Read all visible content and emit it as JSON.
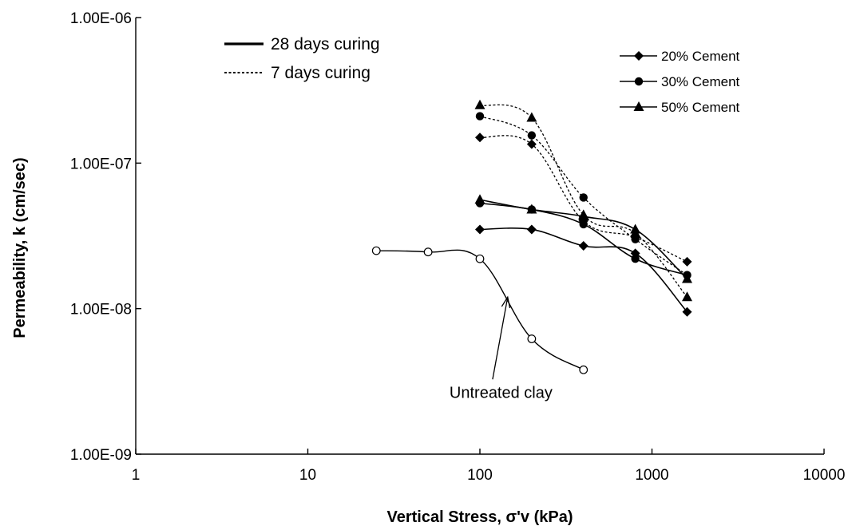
{
  "chart_data": {
    "type": "line",
    "title": "",
    "xlabel": "Vertical Stress, σ'v (kPa)",
    "ylabel": "Permeability, k (cm/sec)",
    "x_scale": "log",
    "y_scale": "log",
    "xlim": [
      1,
      10000
    ],
    "ylim": [
      1e-09,
      1e-06
    ],
    "x_ticks": [
      {
        "value": 1,
        "label": "1"
      },
      {
        "value": 10,
        "label": "10"
      },
      {
        "value": 100,
        "label": "100"
      },
      {
        "value": 1000,
        "label": "1000"
      },
      {
        "value": 10000,
        "label": "10000"
      }
    ],
    "y_ticks": [
      {
        "value": 1e-09,
        "label": "1.00E-09"
      },
      {
        "value": 1e-08,
        "label": "1.00E-08"
      },
      {
        "value": 1e-07,
        "label": "1.00E-07"
      },
      {
        "value": 1e-06,
        "label": "1.00E-06"
      }
    ],
    "grid": false,
    "legend_curing": [
      {
        "label": "28 days curing",
        "line": "solid"
      },
      {
        "label": "7 days curing",
        "line": "dotted"
      }
    ],
    "legend_cement": [
      {
        "label": "20% Cement",
        "marker": "diamond"
      },
      {
        "label": "30% Cement",
        "marker": "circle"
      },
      {
        "label": "50% Cement",
        "marker": "triangle"
      }
    ],
    "annotation": {
      "text": "Untreated clay",
      "x": 110,
      "y": 3.8e-09,
      "arrow_to_x": 145,
      "arrow_to_y": 1.2e-08
    },
    "series": [
      {
        "cement": "20% Cement",
        "curing": "28 days curing",
        "marker": "diamond",
        "line": "solid",
        "points": [
          [
            100,
            3.5e-08
          ],
          [
            200,
            3.5e-08
          ],
          [
            400,
            2.7e-08
          ],
          [
            800,
            2.4e-08
          ],
          [
            1600,
            9.5e-09
          ]
        ]
      },
      {
        "cement": "30% Cement",
        "curing": "28 days curing",
        "marker": "circle",
        "line": "solid",
        "points": [
          [
            100,
            5.3e-08
          ],
          [
            200,
            4.8e-08
          ],
          [
            400,
            3.8e-08
          ],
          [
            800,
            2.2e-08
          ],
          [
            1600,
            1.7e-08
          ]
        ]
      },
      {
        "cement": "50% Cement",
        "curing": "28 days curing",
        "marker": "triangle",
        "line": "solid",
        "points": [
          [
            100,
            5.6e-08
          ],
          [
            200,
            4.8e-08
          ],
          [
            400,
            4.3e-08
          ],
          [
            800,
            3.5e-08
          ],
          [
            1600,
            1.6e-08
          ]
        ]
      },
      {
        "cement": "20% Cement",
        "curing": "7 days curing",
        "marker": "diamond",
        "line": "dotted",
        "points": [
          [
            100,
            1.5e-07
          ],
          [
            200,
            1.35e-07
          ],
          [
            400,
            4e-08
          ],
          [
            800,
            3.1e-08
          ],
          [
            1600,
            2.1e-08
          ]
        ]
      },
      {
        "cement": "30% Cement",
        "curing": "7 days curing",
        "marker": "circle",
        "line": "dotted",
        "points": [
          [
            100,
            2.1e-07
          ],
          [
            200,
            1.55e-07
          ],
          [
            400,
            5.8e-08
          ],
          [
            800,
            3e-08
          ],
          [
            1600,
            1.7e-08
          ]
        ]
      },
      {
        "cement": "50% Cement",
        "curing": "7 days curing",
        "marker": "triangle",
        "line": "dotted",
        "points": [
          [
            100,
            2.5e-07
          ],
          [
            200,
            2.05e-07
          ],
          [
            400,
            4.4e-08
          ],
          [
            800,
            3.3e-08
          ],
          [
            1600,
            1.2e-08
          ]
        ]
      },
      {
        "cement": "Untreated clay",
        "curing": "",
        "marker": "open-circle",
        "line": "solid",
        "points": [
          [
            25,
            2.5e-08
          ],
          [
            50,
            2.45e-08
          ],
          [
            100,
            2.2e-08
          ],
          [
            200,
            6.2e-09
          ],
          [
            400,
            3.8e-09
          ]
        ]
      }
    ]
  }
}
